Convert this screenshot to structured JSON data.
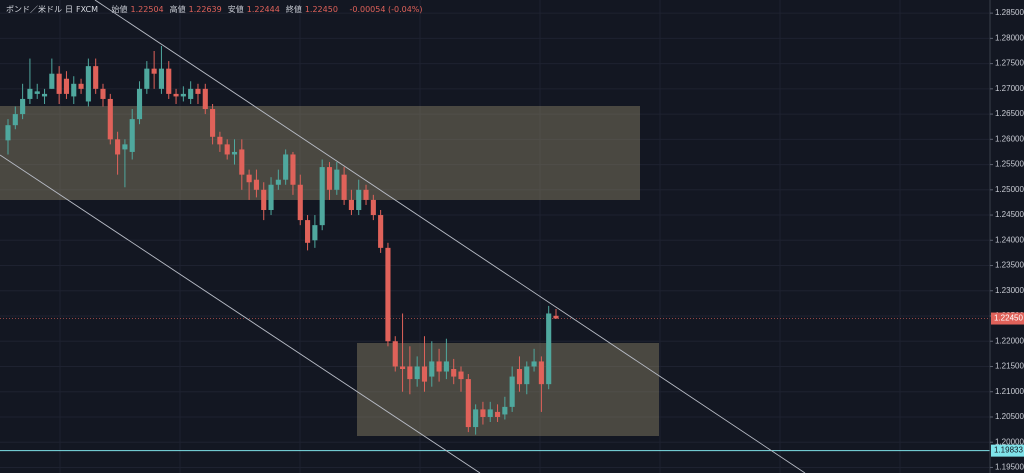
{
  "header": {
    "symbol": "ポンド／米ドル",
    "interval": "日",
    "source": "FXCM",
    "ohlc": [
      {
        "label": "始値",
        "value": "1.22504"
      },
      {
        "label": "高値",
        "value": "1.22639"
      },
      {
        "label": "安値",
        "value": "1.22444"
      },
      {
        "label": "終値",
        "value": "1.22450"
      }
    ],
    "change": "-0.00054 (-0.04%)"
  },
  "chart_data": {
    "type": "candlestick",
    "up_color": "#4fa89e",
    "down_color": "#e0625a",
    "grid": true,
    "ylim": [
      1.1939,
      1.2876
    ],
    "yticks": [
      {
        "value": 1.285,
        "label": "1.28500"
      },
      {
        "value": 1.28,
        "label": "1.28000"
      },
      {
        "value": 1.275,
        "label": "1.27500"
      },
      {
        "value": 1.27,
        "label": "1.27000"
      },
      {
        "value": 1.265,
        "label": "1.26500"
      },
      {
        "value": 1.26,
        "label": "1.26000"
      },
      {
        "value": 1.255,
        "label": "1.25500"
      },
      {
        "value": 1.25,
        "label": "1.25000"
      },
      {
        "value": 1.245,
        "label": "1.24500"
      },
      {
        "value": 1.24,
        "label": "1.24000"
      },
      {
        "value": 1.235,
        "label": "1.23500"
      },
      {
        "value": 1.23,
        "label": "1.23000"
      },
      {
        "value": 1.225,
        "label": "1.22500"
      },
      {
        "value": 1.22,
        "label": "1.22000"
      },
      {
        "value": 1.215,
        "label": "1.21500"
      },
      {
        "value": 1.21,
        "label": "1.21000"
      },
      {
        "value": 1.205,
        "label": "1.20500"
      },
      {
        "value": 1.2,
        "label": "1.20000"
      },
      {
        "value": 1.195,
        "label": "1.19500"
      }
    ],
    "last_price": {
      "value": 1.2245,
      "label": "1.22450",
      "color": "#e0625a"
    },
    "alert_price": {
      "value": 1.19833,
      "label": "1.19833",
      "color": "#7fe3ea"
    },
    "open": [
      1.2598,
      1.2628,
      1.265,
      1.268,
      1.269,
      1.2685,
      1.27,
      1.273,
      1.272,
      1.2685,
      1.271,
      1.2675,
      1.2745,
      1.27,
      1.268,
      1.26,
      1.258,
      1.2575,
      1.264,
      1.27,
      1.274,
      1.27,
      1.274,
      1.269,
      1.2685,
      1.268,
      1.27,
      1.27,
      1.266,
      1.2605,
      1.259,
      1.257,
      1.258,
      1.253,
      1.252,
      1.25,
      1.246,
      1.251,
      1.252,
      1.257,
      1.251,
      1.244,
      1.24,
      1.243,
      1.2545,
      1.25,
      1.253,
      1.248,
      1.246,
      1.25,
      1.248,
      1.245,
      1.2385,
      1.22,
      1.215,
      1.215,
      1.2125,
      1.215,
      1.213,
      1.216,
      1.214,
      1.2145,
      1.214,
      1.2125,
      1.203,
      1.2065,
      1.205,
      1.206,
      1.2055,
      1.207,
      1.2145,
      1.2115,
      1.215,
      1.216,
      1.2115,
      1.22504
    ],
    "high": [
      1.264,
      1.2665,
      1.271,
      1.276,
      1.271,
      1.27,
      1.276,
      1.2745,
      1.2735,
      1.2725,
      1.272,
      1.276,
      1.276,
      1.271,
      1.269,
      1.2615,
      1.26,
      1.266,
      1.2715,
      1.2755,
      1.2775,
      1.2785,
      1.2755,
      1.27,
      1.2705,
      1.2715,
      1.271,
      1.271,
      1.267,
      1.2615,
      1.26,
      1.26,
      1.26,
      1.254,
      1.254,
      1.2515,
      1.2525,
      1.254,
      1.258,
      1.2575,
      1.253,
      1.245,
      1.245,
      1.256,
      1.2555,
      1.2555,
      1.2545,
      1.25,
      1.252,
      1.251,
      1.249,
      1.246,
      1.2395,
      1.221,
      1.2255,
      1.219,
      1.217,
      1.221,
      1.22,
      1.2185,
      1.2205,
      1.2165,
      1.215,
      1.2135,
      1.2075,
      1.208,
      1.208,
      1.2075,
      1.209,
      1.215,
      1.217,
      1.216,
      1.2185,
      1.217,
      1.227,
      1.22639
    ],
    "low": [
      1.257,
      1.262,
      1.264,
      1.267,
      1.268,
      1.267,
      1.27,
      1.267,
      1.268,
      1.267,
      1.269,
      1.2665,
      1.269,
      1.2665,
      1.259,
      1.253,
      1.2505,
      1.256,
      1.263,
      1.269,
      1.27,
      1.269,
      1.268,
      1.267,
      1.2675,
      1.267,
      1.267,
      1.265,
      1.259,
      1.2575,
      1.256,
      1.255,
      1.25,
      1.248,
      1.2485,
      1.244,
      1.245,
      1.25,
      1.251,
      1.249,
      1.243,
      1.238,
      1.2385,
      1.242,
      1.248,
      1.249,
      1.247,
      1.245,
      1.245,
      1.247,
      1.244,
      1.2375,
      1.219,
      1.214,
      1.21,
      1.2095,
      1.211,
      1.21,
      1.211,
      1.212,
      1.2125,
      1.2115,
      1.21,
      1.202,
      1.2015,
      1.2035,
      1.204,
      1.204,
      1.2045,
      1.206,
      1.21,
      1.2095,
      1.214,
      1.206,
      1.2105,
      1.22444
    ],
    "close": [
      1.2628,
      1.265,
      1.268,
      1.27,
      1.2695,
      1.269,
      1.273,
      1.269,
      1.269,
      1.271,
      1.27,
      1.2745,
      1.27,
      1.268,
      1.26,
      1.257,
      1.259,
      1.264,
      1.27,
      1.274,
      1.273,
      1.274,
      1.269,
      1.2685,
      1.269,
      1.27,
      1.269,
      1.266,
      1.2605,
      1.259,
      1.257,
      1.2575,
      1.253,
      1.2515,
      1.25,
      1.246,
      1.251,
      1.252,
      1.257,
      1.251,
      1.244,
      1.2395,
      1.243,
      1.2545,
      1.25,
      1.254,
      1.248,
      1.246,
      1.25,
      1.248,
      1.245,
      1.2385,
      1.22,
      1.215,
      1.2145,
      1.2125,
      1.215,
      1.212,
      1.216,
      1.214,
      1.216,
      1.213,
      1.2125,
      1.203,
      1.2065,
      1.205,
      1.2065,
      1.205,
      1.207,
      1.213,
      1.2115,
      1.215,
      1.216,
      1.2115,
      1.2255,
      1.2245
    ]
  }
}
